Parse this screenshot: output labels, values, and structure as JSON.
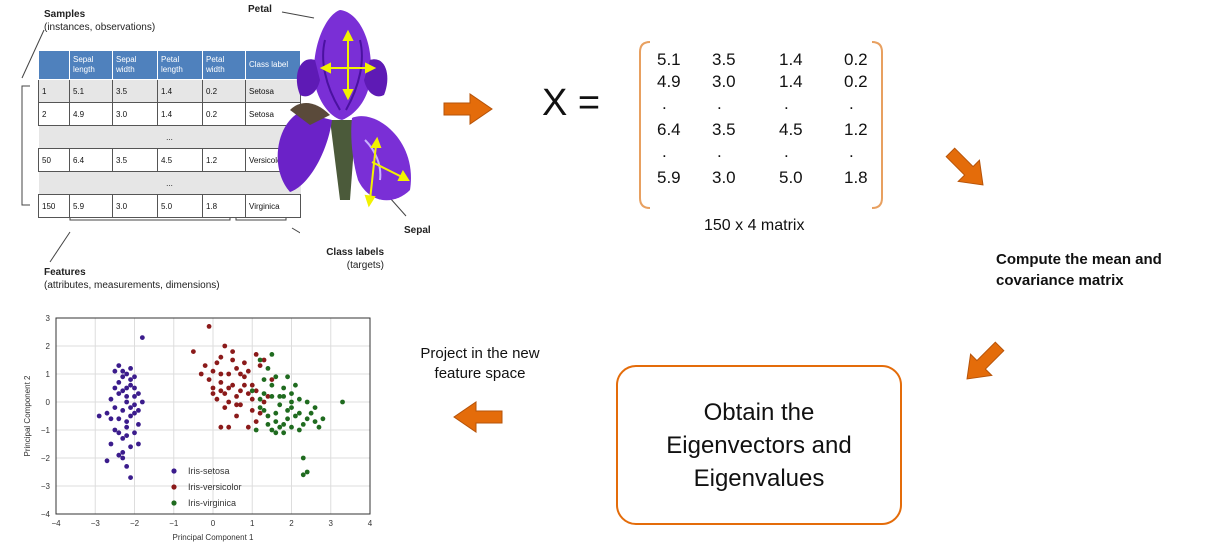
{
  "dataset_table": {
    "samples_title": "Samples",
    "samples_subtitle": "(instances, observations)",
    "headers": [
      "",
      "Sepal length",
      "Sepal width",
      "Petal length",
      "Petal width",
      "Class label"
    ],
    "rows": [
      {
        "cells": [
          "1",
          "5.1",
          "3.5",
          "1.4",
          "0.2",
          "Setosa"
        ],
        "shade": true
      },
      {
        "cells": [
          "2",
          "4.9",
          "3.0",
          "1.4",
          "0.2",
          "Setosa"
        ],
        "shade": false
      },
      {
        "ellipsis": "..."
      },
      {
        "cells": [
          "50",
          "6.4",
          "3.5",
          "4.5",
          "1.2",
          "Versicolor"
        ],
        "shade": false
      },
      {
        "ellipsis": "..."
      },
      {
        "cells": [
          "150",
          "5.9",
          "3.0",
          "5.0",
          "1.8",
          "Virginica"
        ],
        "shade": false
      }
    ],
    "features_title": "Features",
    "features_subtitle": "(attributes, measurements, dimensions)",
    "class_labels_title": "Class labels",
    "class_labels_subtitle": "(targets)"
  },
  "flower": {
    "petal_label": "Petal",
    "sepal_label": "Sepal",
    "colors": {
      "petal": "#7a2fd6",
      "petal_dark": "#4a12a0",
      "stem": "#4b5a3a",
      "arrow": "#f2f200"
    }
  },
  "matrix": {
    "lhs": "X =",
    "rows": [
      [
        "5.1",
        "3.5",
        "1.4",
        "0.2"
      ],
      [
        "4.9",
        "3.0",
        "1.4",
        "0.2"
      ],
      [
        ".",
        ".",
        ".",
        "."
      ],
      [
        "6.4",
        "3.5",
        "4.5",
        "1.2"
      ],
      [
        ".",
        ".",
        ".",
        "."
      ],
      [
        "5.9",
        "3.0",
        "5.0",
        "1.8"
      ]
    ],
    "caption": "150 x 4 matrix",
    "bracket_color": "#e8a060"
  },
  "steps": {
    "compute": [
      "Compute the mean and",
      "covariance matrix"
    ],
    "obtain": [
      "Obtain the",
      "Eigenvectors and",
      "Eigenvalues"
    ],
    "project": [
      "Project in the new",
      "feature space"
    ],
    "arrow_color": "#e46c0a"
  },
  "chart_data": {
    "type": "scatter",
    "xlabel": "Principal Component 1",
    "ylabel": "Principal Component 2",
    "xlim": [
      -4,
      4
    ],
    "ylim": [
      -4,
      3
    ],
    "xticks": [
      "−4",
      "−3",
      "−2",
      "−1",
      "0",
      "1",
      "2",
      "3",
      "4"
    ],
    "yticks": [
      "−4",
      "−3",
      "−2",
      "−1",
      "0",
      "1",
      "2",
      "3"
    ],
    "legend_position": "lower-left",
    "series": [
      {
        "name": "Iris-setosa",
        "color": "#3b1c8c",
        "points": [
          [
            -1.8,
            2.3
          ],
          [
            -2.5,
            1.1
          ],
          [
            -2.2,
            1.0
          ],
          [
            -2.0,
            0.9
          ],
          [
            -2.4,
            0.7
          ],
          [
            -2.1,
            0.6
          ],
          [
            -2.3,
            0.4
          ],
          [
            -1.9,
            0.3
          ],
          [
            -2.6,
            0.1
          ],
          [
            -2.2,
            0.0
          ],
          [
            -2.0,
            -0.1
          ],
          [
            -2.3,
            -0.3
          ],
          [
            -2.7,
            -0.4
          ],
          [
            -2.1,
            -0.5
          ],
          [
            -2.4,
            -0.6
          ],
          [
            -1.9,
            -0.8
          ],
          [
            -2.2,
            -0.9
          ],
          [
            -2.5,
            -1.0
          ],
          [
            -2.0,
            -1.1
          ],
          [
            -2.3,
            -1.3
          ],
          [
            -2.6,
            -1.5
          ],
          [
            -2.1,
            -1.6
          ],
          [
            -2.4,
            -1.9
          ],
          [
            -2.2,
            -2.3
          ],
          [
            -2.1,
            -2.7
          ],
          [
            -2.0,
            0.2
          ],
          [
            -2.3,
            0.9
          ],
          [
            -1.8,
            0.0
          ],
          [
            -2.4,
            1.3
          ],
          [
            -2.2,
            0.5
          ],
          [
            -2.0,
            -0.4
          ],
          [
            -2.5,
            -0.2
          ],
          [
            -2.2,
            -1.2
          ],
          [
            -1.9,
            -1.5
          ],
          [
            -2.3,
            -2.0
          ],
          [
            -2.7,
            -2.1
          ],
          [
            -2.1,
            0.8
          ],
          [
            -2.4,
            0.3
          ],
          [
            -2.2,
            -0.7
          ],
          [
            -2.0,
            0.5
          ],
          [
            -2.5,
            0.5
          ],
          [
            -2.3,
            1.1
          ],
          [
            -2.1,
            -0.2
          ],
          [
            -2.2,
            0.2
          ],
          [
            -2.6,
            -0.6
          ],
          [
            -2.9,
            -0.5
          ],
          [
            -1.9,
            -0.3
          ],
          [
            -2.4,
            -1.1
          ],
          [
            -2.1,
            1.2
          ],
          [
            -2.3,
            -1.8
          ]
        ]
      },
      {
        "name": "Iris-versicolor",
        "color": "#8b1a1a",
        "points": [
          [
            -0.1,
            2.7
          ],
          [
            0.3,
            2.0
          ],
          [
            -0.5,
            1.8
          ],
          [
            0.2,
            1.6
          ],
          [
            0.5,
            1.5
          ],
          [
            -0.2,
            1.3
          ],
          [
            0.0,
            1.1
          ],
          [
            0.4,
            1.0
          ],
          [
            -0.1,
            0.8
          ],
          [
            0.2,
            0.7
          ],
          [
            0.5,
            0.6
          ],
          [
            0.0,
            0.5
          ],
          [
            0.3,
            0.3
          ],
          [
            0.6,
            0.2
          ],
          [
            0.1,
            0.1
          ],
          [
            0.4,
            0.0
          ],
          [
            0.7,
            -0.1
          ],
          [
            0.9,
            0.3
          ],
          [
            1.0,
            0.6
          ],
          [
            0.8,
            0.9
          ],
          [
            1.2,
            1.3
          ],
          [
            1.1,
            1.7
          ],
          [
            1.3,
            0.0
          ],
          [
            1.0,
            -0.3
          ],
          [
            0.6,
            -0.5
          ],
          [
            0.4,
            -0.9
          ],
          [
            0.9,
            -0.9
          ],
          [
            0.2,
            -0.9
          ],
          [
            1.1,
            -0.7
          ],
          [
            1.5,
            0.8
          ],
          [
            1.3,
            1.5
          ],
          [
            0.7,
            0.4
          ],
          [
            0.2,
            1.0
          ],
          [
            0.6,
            1.2
          ],
          [
            0.0,
            0.3
          ],
          [
            0.3,
            -0.2
          ],
          [
            0.8,
            1.4
          ],
          [
            1.0,
            0.1
          ],
          [
            1.2,
            -0.4
          ],
          [
            0.5,
            1.8
          ],
          [
            -0.3,
            1.0
          ],
          [
            0.1,
            1.4
          ],
          [
            0.9,
            1.1
          ],
          [
            0.4,
            0.5
          ],
          [
            1.4,
            0.2
          ],
          [
            0.6,
            -0.1
          ],
          [
            0.8,
            0.6
          ],
          [
            1.1,
            0.4
          ],
          [
            0.2,
            0.4
          ],
          [
            0.7,
            1.0
          ]
        ]
      },
      {
        "name": "Iris-virginica",
        "color": "#1f6b1f",
        "points": [
          [
            1.2,
            1.5
          ],
          [
            1.4,
            1.2
          ],
          [
            1.6,
            0.9
          ],
          [
            1.5,
            0.6
          ],
          [
            1.8,
            0.5
          ],
          [
            2.0,
            0.3
          ],
          [
            2.2,
            0.1
          ],
          [
            2.4,
            0.0
          ],
          [
            2.6,
            -0.2
          ],
          [
            1.7,
            -0.1
          ],
          [
            1.9,
            -0.3
          ],
          [
            2.1,
            -0.5
          ],
          [
            2.3,
            -0.8
          ],
          [
            2.0,
            -0.9
          ],
          [
            1.6,
            -0.7
          ],
          [
            1.4,
            -0.5
          ],
          [
            1.2,
            -0.2
          ],
          [
            1.3,
            0.3
          ],
          [
            1.0,
            0.4
          ],
          [
            1.5,
            -1.0
          ],
          [
            1.8,
            -1.1
          ],
          [
            2.2,
            -1.0
          ],
          [
            2.8,
            -0.6
          ],
          [
            3.3,
            0.0
          ],
          [
            2.7,
            -0.9
          ],
          [
            2.3,
            -2.0
          ],
          [
            2.4,
            -2.5
          ],
          [
            2.3,
            -2.6
          ],
          [
            1.9,
            -0.6
          ],
          [
            1.7,
            0.2
          ],
          [
            2.1,
            0.6
          ],
          [
            1.5,
            1.7
          ],
          [
            1.3,
            0.8
          ],
          [
            1.9,
            0.9
          ],
          [
            2.5,
            -0.4
          ],
          [
            1.6,
            -0.4
          ],
          [
            2.0,
            -0.2
          ],
          [
            1.1,
            -1.0
          ],
          [
            1.4,
            -0.8
          ],
          [
            1.8,
            -0.8
          ],
          [
            2.2,
            -0.4
          ],
          [
            1.7,
            -0.9
          ],
          [
            1.3,
            -0.3
          ],
          [
            2.6,
            -0.7
          ],
          [
            2.0,
            0.0
          ],
          [
            1.5,
            0.2
          ],
          [
            1.2,
            0.1
          ],
          [
            2.4,
            -0.6
          ],
          [
            1.8,
            0.2
          ],
          [
            1.6,
            -1.1
          ]
        ]
      }
    ]
  }
}
